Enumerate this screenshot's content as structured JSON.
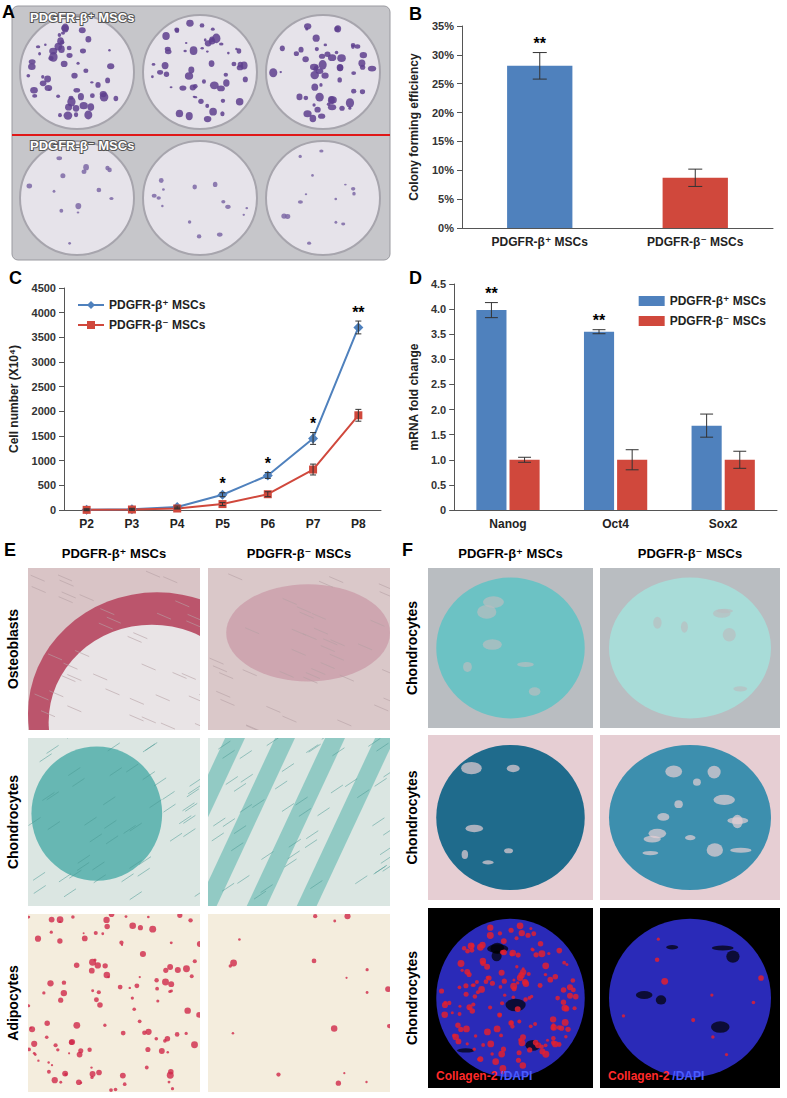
{
  "chart_data": [
    {
      "type": "bar",
      "title": "B",
      "categories": [
        "PDGFR-β⁺ MSCs",
        "PDGFR-β⁻ MSCs"
      ],
      "values": [
        28.1,
        8.7
      ],
      "errors": [
        2.3,
        1.5
      ],
      "annotations": [
        "**",
        null
      ],
      "colors": [
        "#4f81bd",
        "#d0483c"
      ],
      "y_label": "Colony forming efficiency",
      "ylim": [
        0,
        35
      ],
      "yticks": [
        {
          "value": 0,
          "label": "0%"
        },
        {
          "value": 5,
          "label": "5%"
        },
        {
          "value": 10,
          "label": "10%"
        },
        {
          "value": 15,
          "label": "15%"
        },
        {
          "value": 20,
          "label": "20%"
        },
        {
          "value": 25,
          "label": "25%"
        },
        {
          "value": 30,
          "label": "30%"
        },
        {
          "value": 35,
          "label": "35%"
        }
      ],
      "grid": false
    },
    {
      "type": "line",
      "title": "C",
      "categories": [
        "P2",
        "P3",
        "P4",
        "P5",
        "P6",
        "P7",
        "P8"
      ],
      "y_label": "Cell number (X10⁴)",
      "ylim": [
        0,
        4500
      ],
      "yticks": [
        0,
        500,
        1000,
        1500,
        2000,
        2500,
        3000,
        3500,
        4000,
        4500
      ],
      "legend": "upper left",
      "grid": false,
      "series": [
        {
          "name": "PDGFR-β⁺ MSCs",
          "color": "#4f81bd",
          "marker": "diamond",
          "values": [
            5,
            15,
            60,
            310,
            700,
            1450,
            3700
          ],
          "errors": [
            20,
            20,
            20,
            40,
            60,
            120,
            130
          ],
          "annotations": [
            null,
            null,
            null,
            "*",
            "*",
            "*",
            "**"
          ]
        },
        {
          "name": "PDGFR-β⁻ MSCs",
          "color": "#d0483c",
          "marker": "square",
          "values": [
            3,
            10,
            30,
            120,
            320,
            820,
            1920
          ],
          "errors": [
            10,
            10,
            10,
            30,
            50,
            110,
            120
          ]
        }
      ]
    },
    {
      "type": "bar",
      "title": "D",
      "categories": [
        "Nanog",
        "Oct4",
        "Sox2"
      ],
      "y_label": "mRNA fold change",
      "ylim": [
        0,
        4.5
      ],
      "yticks": [
        0,
        0.5,
        {
          "value": 1,
          "label": "1.0"
        },
        1.5,
        {
          "value": 2,
          "label": "2.0"
        },
        2.5,
        {
          "value": 3,
          "label": "3.0"
        },
        3.5,
        {
          "value": 4,
          "label": "4.0"
        },
        4.5
      ],
      "legend": "upper right",
      "grid": false,
      "series": [
        {
          "name": "PDGFR-β⁺ MSCs",
          "color": "#4f81bd",
          "values": [
            3.98,
            3.55,
            1.68
          ],
          "errors": [
            0.15,
            0.04,
            0.23
          ],
          "annotations": [
            "**",
            "**",
            null
          ]
        },
        {
          "name": "PDGFR-β⁻ MSCs",
          "color": "#d0483c",
          "values": [
            1.0,
            1.0,
            1.0
          ],
          "errors": [
            0.05,
            0.2,
            0.17
          ]
        }
      ]
    }
  ],
  "image_panels": [
    {
      "panel": "A",
      "rows": [
        "PDGFR-β⁺ MSCs",
        "PDGFR-β⁻ MSCs"
      ]
    },
    {
      "panel": "E",
      "columns": [
        "PDGFR-β⁺ MSCs",
        "PDGFR-β⁻ MSCs"
      ],
      "rows": [
        "Osteoblasts",
        "Chondrocytes",
        "Adipocytes"
      ]
    },
    {
      "panel": "F",
      "columns": [
        "PDGFR-β⁺ MSCs",
        "PDGFR-β⁻ MSCs"
      ],
      "rows": [
        "Chondrocytes",
        "Chondrocytes",
        "Chondrocytes"
      ],
      "stain": [
        "Collagen-2",
        "/DAPI"
      ]
    }
  ]
}
